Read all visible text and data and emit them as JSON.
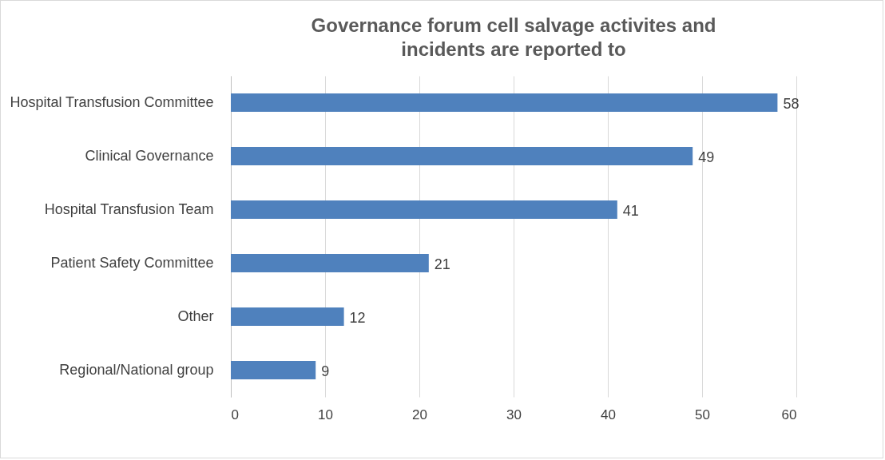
{
  "chart_data": {
    "type": "bar",
    "orientation": "horizontal",
    "title": "Governance forum cell salvage activites and\nincidents are reported to",
    "categories": [
      "Hospital Transfusion Committee",
      "Clinical Governance",
      "Hospital Transfusion Team",
      "Patient Safety Committee",
      "Other",
      "Regional/National group"
    ],
    "values": [
      58,
      49,
      41,
      21,
      12,
      9
    ],
    "color": "#4f81bd",
    "xlim": [
      0,
      60
    ],
    "xticks": [
      0,
      10,
      20,
      30,
      40,
      50,
      60
    ],
    "grid": "x",
    "data_labels": true
  }
}
